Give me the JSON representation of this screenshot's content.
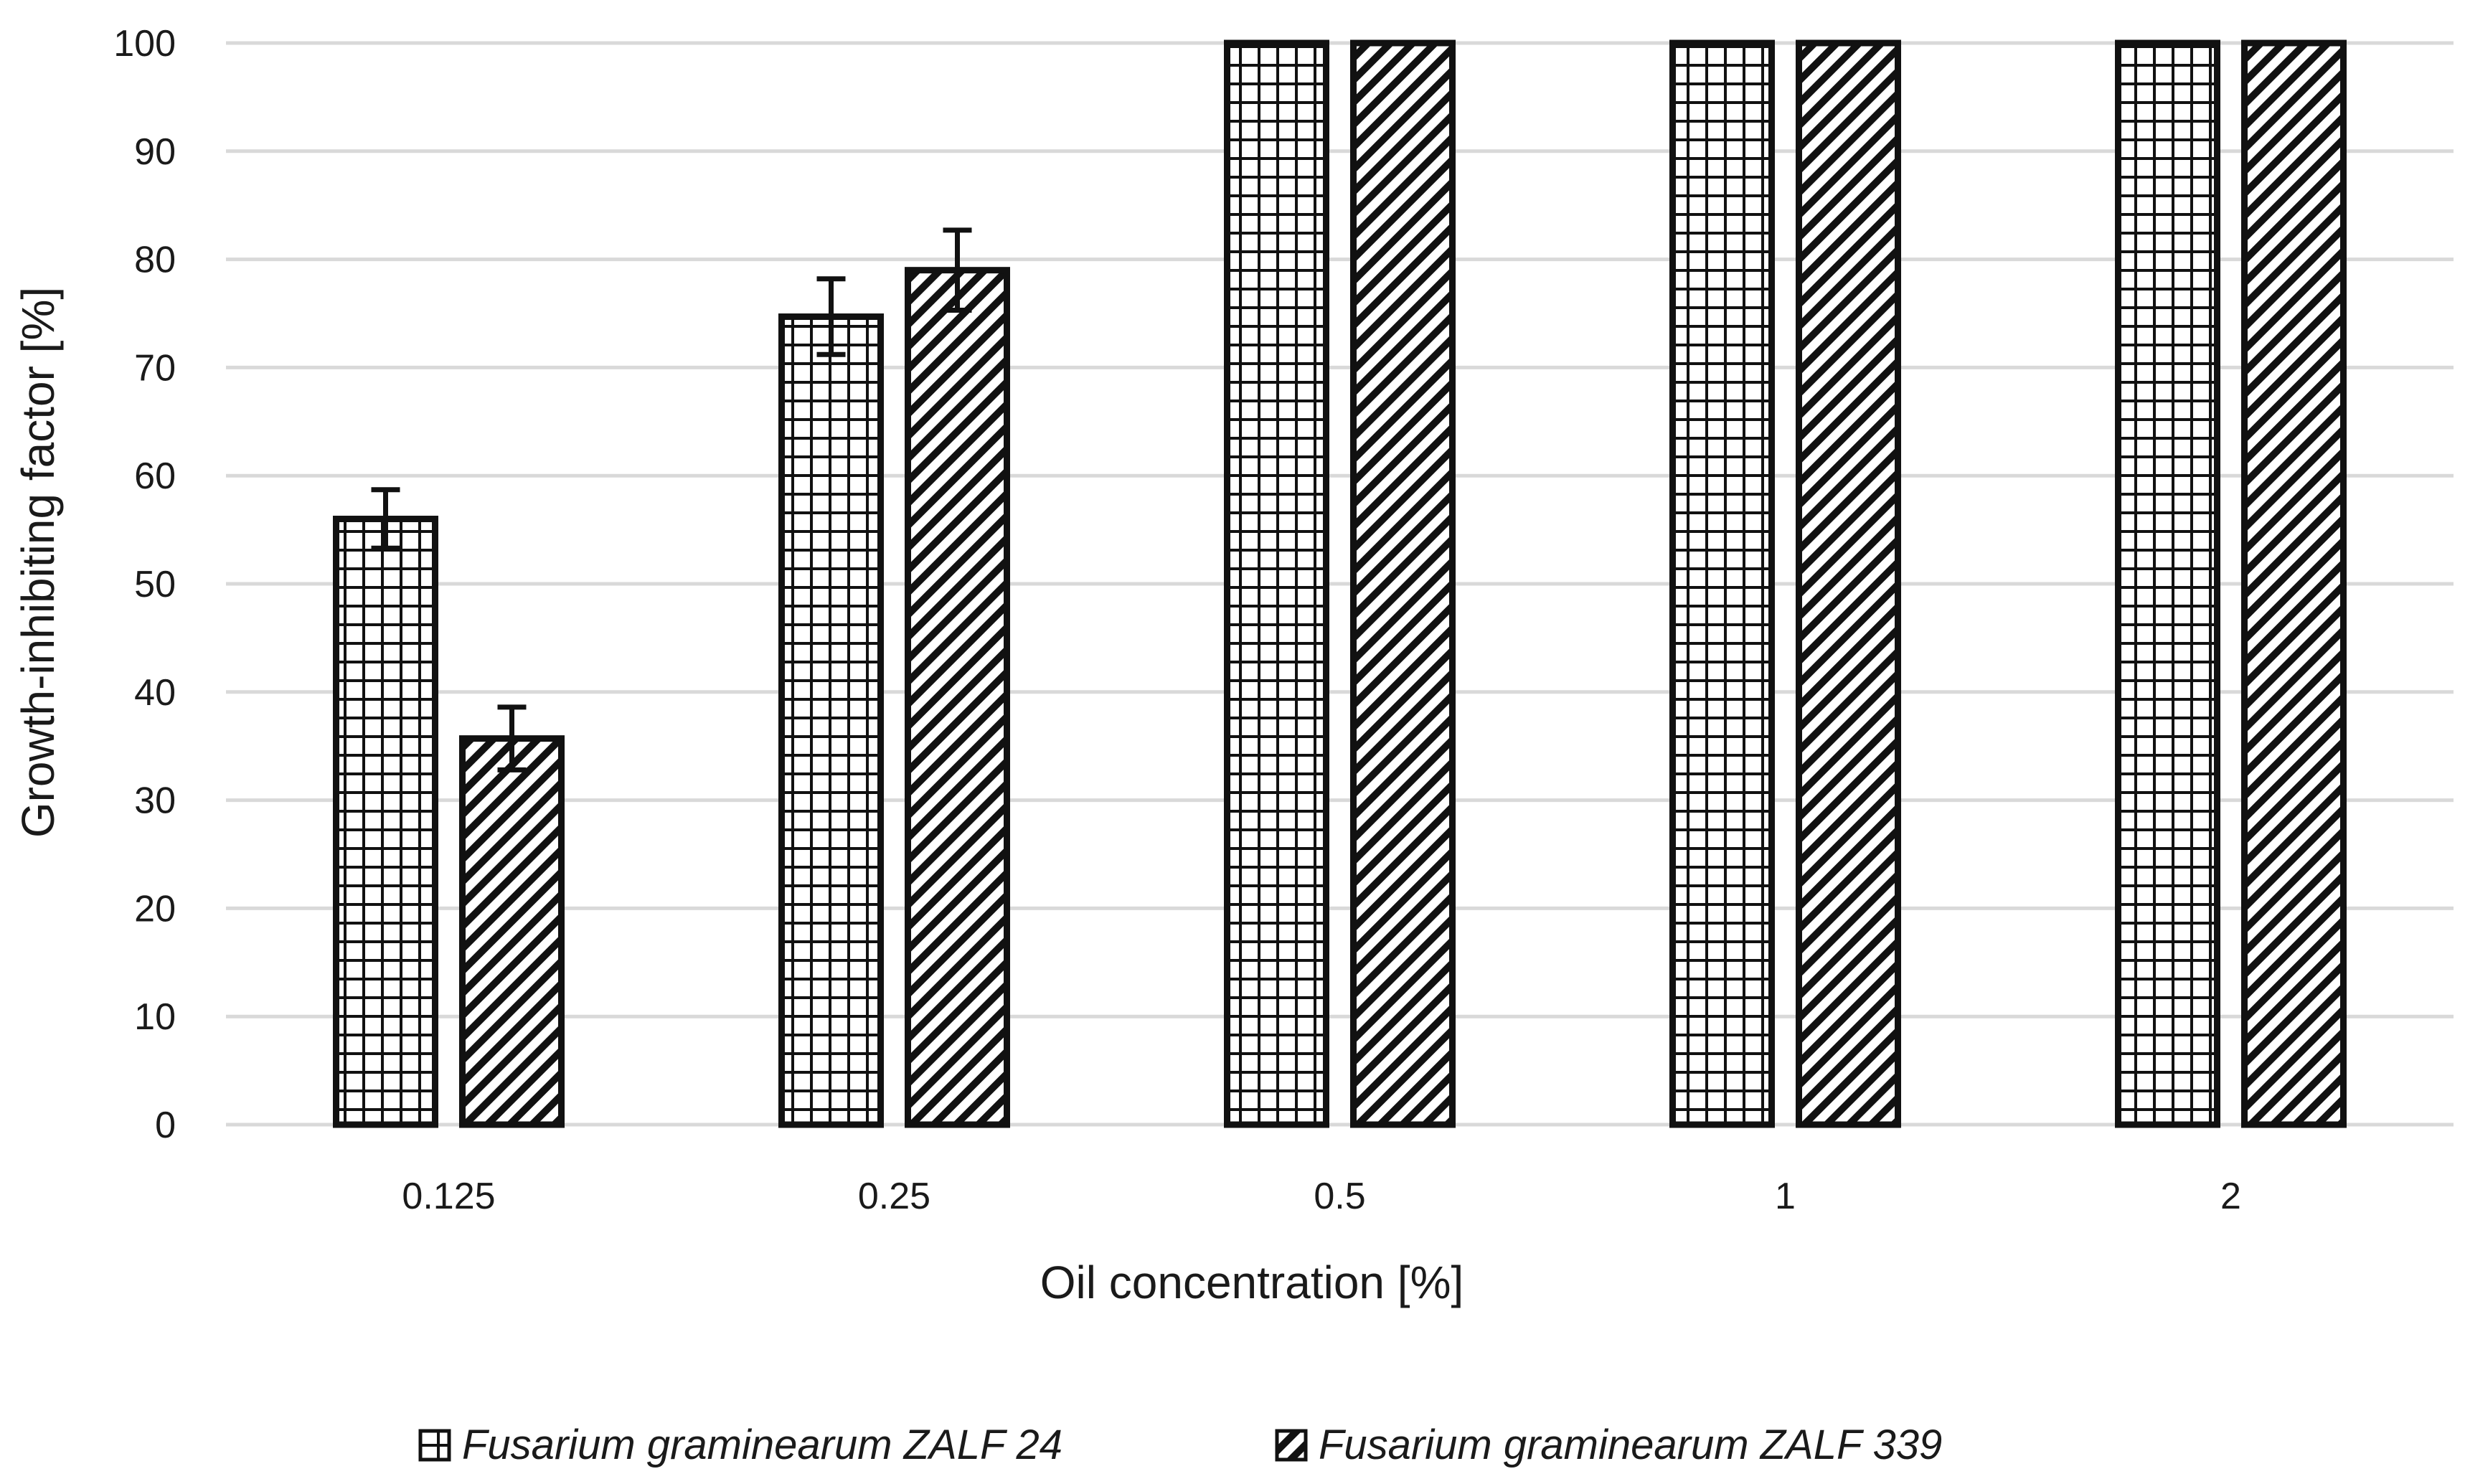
{
  "chart_data": {
    "type": "bar",
    "categories": [
      "0.125",
      "0.25",
      "0.5",
      "1",
      "2"
    ],
    "series": [
      {
        "name": "Fusarium graminearum ZALF 24",
        "pattern": "grid",
        "values": [
          56,
          74.7,
          100,
          100,
          100
        ],
        "errors": [
          2.7,
          3.5,
          null,
          null,
          null
        ]
      },
      {
        "name": "Fusarium graminearum ZALF 339",
        "pattern": "diagonal",
        "values": [
          35.7,
          79,
          100,
          100,
          100
        ],
        "errors": [
          2.9,
          3.7,
          null,
          null,
          null
        ]
      }
    ],
    "xlabel": "Oil concentration [%]",
    "ylabel": "Growth-inhibiting factor [%]",
    "ylim": [
      0,
      100
    ],
    "yticks": [
      "0",
      "10",
      "20",
      "30",
      "40",
      "50",
      "60",
      "70",
      "80",
      "90",
      "100"
    ],
    "grid": true,
    "legend_position": "bottom",
    "colors": {
      "bar_stroke": "#111111",
      "bar_fill": "#ffffff",
      "grid": "#d9d9d9"
    }
  }
}
